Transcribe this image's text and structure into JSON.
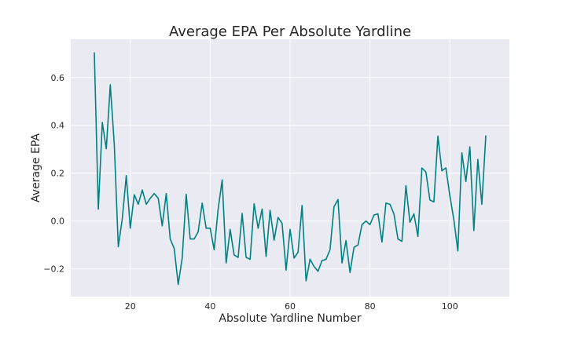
{
  "chart_data": {
    "type": "line",
    "title": "Average EPA Per Absolute Yardline",
    "xlabel": "Absolute Yardline Number",
    "ylabel": "Average EPA",
    "xlim": [
      5.1,
      114.9
    ],
    "ylim": [
      -0.316,
      0.76
    ],
    "xticks": [
      20,
      40,
      60,
      80,
      100
    ],
    "xtick_labels": [
      "20",
      "40",
      "60",
      "80",
      "100"
    ],
    "yticks": [
      -0.2,
      0.0,
      0.2,
      0.4,
      0.6
    ],
    "ytick_labels": [
      "−0.2",
      "0.0",
      "0.2",
      "0.4",
      "0.6"
    ],
    "grid": true,
    "line_color": "#008080",
    "background_color": "#eaeaf2",
    "grid_color": "#ffffff",
    "series": [
      {
        "x": [
          11,
          12,
          13,
          14,
          15,
          16,
          17,
          18,
          19,
          20,
          21,
          22,
          23,
          24,
          25,
          26,
          27,
          28,
          29,
          30,
          31,
          32,
          33,
          34,
          35,
          36,
          37,
          38,
          39,
          40,
          41,
          42,
          43,
          44,
          45,
          46,
          47,
          48,
          49,
          50,
          51,
          52,
          53,
          54,
          55,
          56,
          57,
          58,
          59,
          60,
          61,
          62,
          63,
          64,
          65,
          66,
          67,
          68,
          69,
          70,
          71,
          72,
          73,
          74,
          75,
          76,
          77,
          78,
          79,
          80,
          81,
          82,
          83,
          84,
          85,
          86,
          87,
          88,
          89,
          90,
          91,
          92,
          93,
          94,
          95,
          96,
          97,
          98,
          99,
          100,
          101,
          102,
          103,
          104,
          105,
          106,
          107,
          108,
          109
        ],
        "values": [
          0.705,
          0.05,
          0.412,
          0.302,
          0.57,
          0.32,
          -0.107,
          0.01,
          0.19,
          -0.03,
          0.11,
          0.07,
          0.13,
          0.07,
          0.095,
          0.115,
          0.095,
          -0.02,
          0.115,
          -0.075,
          -0.115,
          -0.265,
          -0.155,
          0.112,
          -0.075,
          -0.075,
          -0.045,
          0.075,
          -0.03,
          -0.03,
          -0.12,
          0.05,
          0.172,
          -0.175,
          -0.035,
          -0.142,
          -0.152,
          0.032,
          -0.152,
          -0.16,
          0.072,
          -0.03,
          0.05,
          -0.148,
          0.045,
          -0.08,
          0.015,
          -0.01,
          -0.205,
          -0.035,
          -0.155,
          -0.13,
          0.065,
          -0.25,
          -0.16,
          -0.19,
          -0.21,
          -0.165,
          -0.16,
          -0.12,
          0.06,
          0.09,
          -0.175,
          -0.082,
          -0.215,
          -0.11,
          -0.1,
          -0.015,
          0.0,
          -0.015,
          0.025,
          0.03,
          -0.088,
          0.075,
          0.07,
          0.03,
          -0.075,
          -0.085,
          0.148,
          -0.005,
          0.03,
          -0.065,
          0.222,
          0.205,
          0.088,
          0.08,
          0.355,
          0.21,
          0.222,
          0.105,
          0.005,
          -0.125,
          0.285,
          0.165,
          0.31,
          -0.04,
          0.258,
          0.07,
          0.358
        ]
      }
    ]
  }
}
